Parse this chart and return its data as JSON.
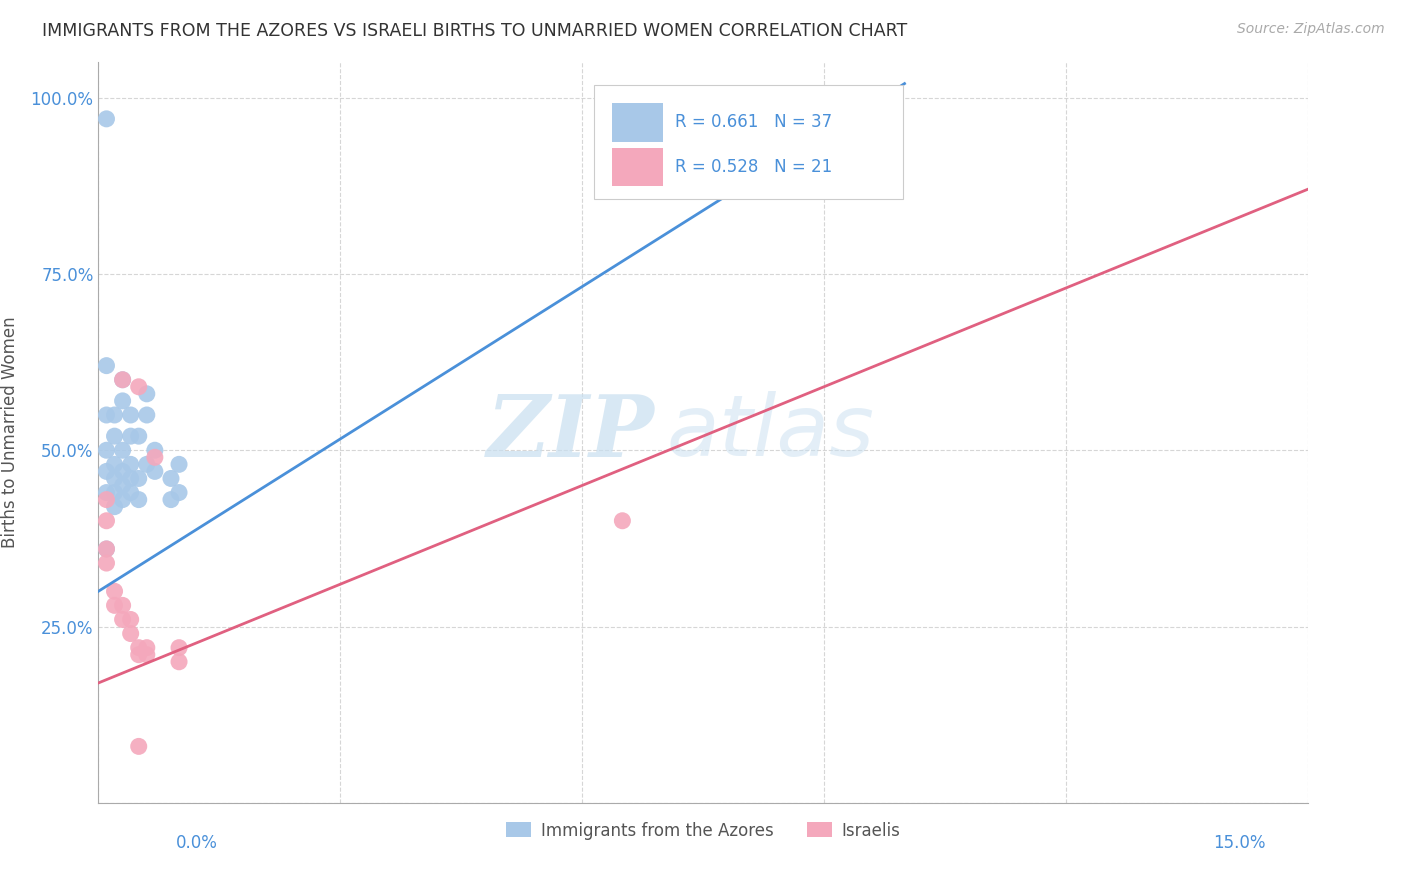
{
  "title": "IMMIGRANTS FROM THE AZORES VS ISRAELI BIRTHS TO UNMARRIED WOMEN CORRELATION CHART",
  "source": "Source: ZipAtlas.com",
  "ylabel": "Births to Unmarried Women",
  "blue_color": "#a8c8e8",
  "pink_color": "#f4a8bc",
  "line_blue": "#4a90d9",
  "line_pink": "#e06080",
  "watermark_zip": "ZIP",
  "watermark_atlas": "atlas",
  "legend_blue_r": "R = 0.661",
  "legend_blue_n": "N = 37",
  "legend_pink_r": "R = 0.528",
  "legend_pink_n": "N = 21",
  "xmin": 0.0,
  "xmax": 0.15,
  "ymin": 0.0,
  "ymax": 1.05,
  "blue_scatter_x": [
    0.001,
    0.001,
    0.001,
    0.001,
    0.001,
    0.001,
    0.001,
    0.002,
    0.002,
    0.002,
    0.002,
    0.002,
    0.002,
    0.003,
    0.003,
    0.003,
    0.003,
    0.003,
    0.003,
    0.004,
    0.004,
    0.004,
    0.004,
    0.004,
    0.005,
    0.005,
    0.005,
    0.006,
    0.006,
    0.006,
    0.007,
    0.007,
    0.009,
    0.009,
    0.01,
    0.01,
    0.09
  ],
  "blue_scatter_y": [
    0.97,
    0.62,
    0.55,
    0.5,
    0.47,
    0.44,
    0.36,
    0.55,
    0.52,
    0.48,
    0.46,
    0.44,
    0.42,
    0.6,
    0.57,
    0.5,
    0.47,
    0.45,
    0.43,
    0.55,
    0.52,
    0.48,
    0.46,
    0.44,
    0.52,
    0.46,
    0.43,
    0.58,
    0.55,
    0.48,
    0.5,
    0.47,
    0.46,
    0.43,
    0.48,
    0.44,
    1.0
  ],
  "pink_scatter_x": [
    0.001,
    0.001,
    0.001,
    0.001,
    0.002,
    0.002,
    0.003,
    0.003,
    0.003,
    0.004,
    0.004,
    0.005,
    0.005,
    0.005,
    0.006,
    0.006,
    0.007,
    0.01,
    0.01,
    0.065,
    0.005
  ],
  "pink_scatter_y": [
    0.43,
    0.4,
    0.36,
    0.34,
    0.3,
    0.28,
    0.28,
    0.26,
    0.6,
    0.26,
    0.24,
    0.22,
    0.21,
    0.59,
    0.22,
    0.21,
    0.49,
    0.22,
    0.2,
    0.4,
    0.08
  ],
  "blue_line_x": [
    0.0,
    0.1
  ],
  "blue_line_y": [
    0.3,
    1.02
  ],
  "pink_line_x": [
    0.0,
    0.15
  ],
  "pink_line_y": [
    0.17,
    0.87
  ],
  "grid_color": "#cccccc",
  "background_color": "#ffffff",
  "axis_label_color": "#4a90d9",
  "title_color": "#333333"
}
